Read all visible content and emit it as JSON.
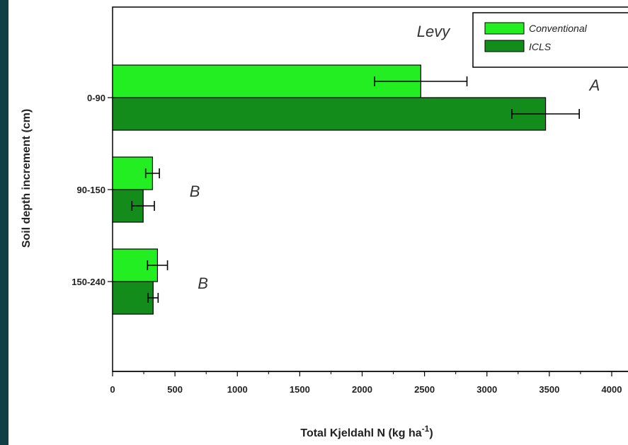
{
  "chart_data": {
    "type": "bar",
    "orientation": "horizontal",
    "title": "Levy",
    "xlabel": "Total Kjeldahl N (kg ha",
    "xlabel_superscript": "-1",
    "xlabel_suffix": ")",
    "ylabel": "Soil depth increment (cm)",
    "xlim": [
      0,
      4000
    ],
    "x_ticks": [
      "0",
      "500",
      "1000",
      "1500",
      "2000",
      "2500",
      "3000",
      "3500",
      "4000"
    ],
    "categories": [
      "0-90",
      "90-150",
      "150-240"
    ],
    "series": [
      {
        "name": "Conventional",
        "color": "#22ee22",
        "values": [
          2470,
          320,
          360
        ],
        "errors": [
          370,
          55,
          80
        ]
      },
      {
        "name": "ICLS",
        "color": "#138c1b",
        "values": [
          3470,
          245,
          325
        ],
        "errors": [
          270,
          90,
          40
        ]
      }
    ],
    "group_letters": [
      "A",
      "B",
      "B"
    ],
    "legend_position": "top-right",
    "grid": false
  }
}
